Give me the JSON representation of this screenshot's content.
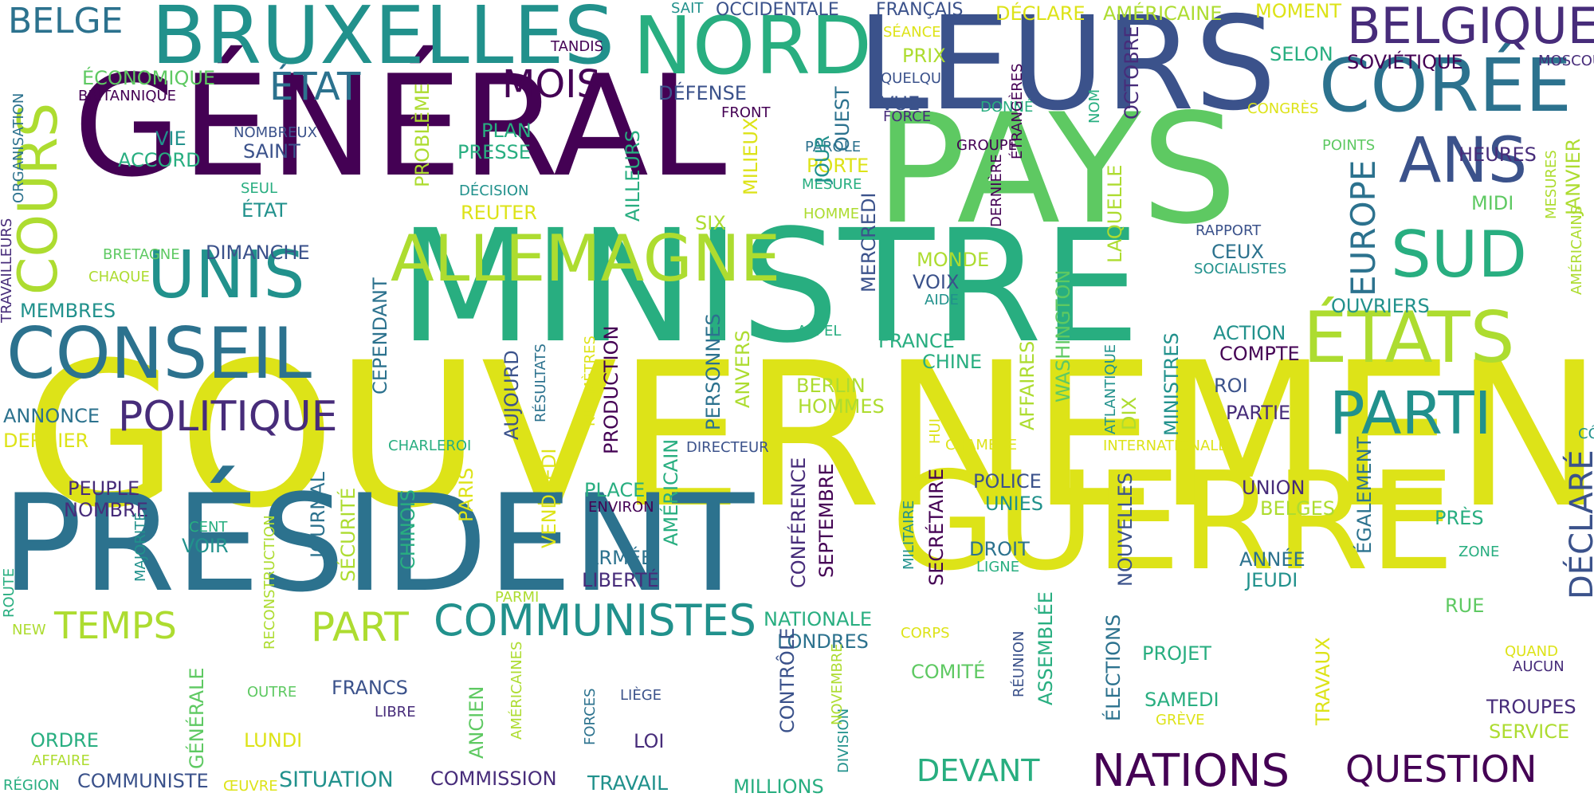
{
  "palette": {
    "c1": "#440154",
    "c2": "#472c7a",
    "c3": "#3b528b",
    "c4": "#2c728e",
    "c5": "#21918c",
    "c6": "#28ae80",
    "c7": "#5ec962",
    "c8": "#addc30",
    "c9": "#dde318"
  },
  "words": [
    {
      "t": "GOUVERNEMENT",
      "c": "c9",
      "v": 0
    },
    {
      "t": "MINISTRE",
      "c": "c6",
      "v": 0
    },
    {
      "t": "GÉNÉRAL",
      "c": "c1",
      "v": 0
    },
    {
      "t": "PAYS",
      "c": "c7",
      "v": 0
    },
    {
      "t": "LEURS",
      "c": "c3",
      "v": 0
    },
    {
      "t": "PRÉSIDENT",
      "c": "c4",
      "v": 0
    },
    {
      "t": "GUERRE",
      "c": "c9",
      "v": 0
    },
    {
      "t": "BRUXELLES",
      "c": "c5",
      "v": 0
    },
    {
      "t": "NORD",
      "c": "c6",
      "v": 0
    },
    {
      "t": "CORÉE",
      "c": "c4",
      "v": 0
    },
    {
      "t": "BELGIQUE",
      "c": "c2",
      "v": 0
    },
    {
      "t": "ANS",
      "c": "c3",
      "v": 0
    },
    {
      "t": "SUD",
      "c": "c6",
      "v": 0
    },
    {
      "t": "ÉTATS",
      "c": "c8",
      "v": 0
    },
    {
      "t": "PARTI",
      "c": "c5",
      "v": 0
    },
    {
      "t": "CONSEIL",
      "c": "c4",
      "v": 0
    },
    {
      "t": "UNIS",
      "c": "c5",
      "v": 0
    },
    {
      "t": "ALLEMAGNE",
      "c": "c8",
      "v": 0
    },
    {
      "t": "POLITIQUE",
      "c": "c2",
      "v": 0
    },
    {
      "t": "COURS",
      "c": "c8",
      "v": 1
    },
    {
      "t": "ÉTAT",
      "c": "c4",
      "v": 0
    },
    {
      "t": "MOIS",
      "c": "c1",
      "v": 0
    },
    {
      "t": "BELGE",
      "c": "c4",
      "v": 0
    },
    {
      "t": "COMMUNISTES",
      "c": "c5",
      "v": 0
    },
    {
      "t": "TEMPS",
      "c": "c8",
      "v": 0
    },
    {
      "t": "PART",
      "c": "c8",
      "v": 0
    },
    {
      "t": "NATIONS",
      "c": "c1",
      "v": 0
    },
    {
      "t": "QUESTION",
      "c": "c1",
      "v": 0
    },
    {
      "t": "DEVANT",
      "c": "c6",
      "v": 0
    },
    {
      "t": "EUROPE",
      "c": "c4",
      "v": 1
    },
    {
      "t": "DÉCLARÉ",
      "c": "c3",
      "v": 1
    },
    {
      "t": "SITUATION",
      "c": "c5",
      "v": 0
    },
    {
      "t": "COMMISSION",
      "c": "c2",
      "v": 0
    },
    {
      "t": "TRAVAIL",
      "c": "c5",
      "v": 0
    },
    {
      "t": "MILLIONS",
      "c": "c6",
      "v": 0
    },
    {
      "t": "ANNONCE",
      "c": "c4",
      "v": 0
    },
    {
      "t": "DERNIER",
      "c": "c9",
      "v": 0
    },
    {
      "t": "MEMBRES",
      "c": "c5",
      "v": 0
    },
    {
      "t": "ÉCONOMIQUE",
      "c": "c7",
      "v": 0
    },
    {
      "t": "BRITANNIQUE",
      "c": "c1",
      "v": 0
    },
    {
      "t": "OCCIDENTALE",
      "c": "c3",
      "v": 0
    },
    {
      "t": "FRANÇAIS",
      "c": "c3",
      "v": 0
    },
    {
      "t": "DÉCLARE",
      "c": "c9",
      "v": 0
    },
    {
      "t": "AMÉRICAINE",
      "c": "c8",
      "v": 0
    },
    {
      "t": "MOMENT",
      "c": "c9",
      "v": 0
    },
    {
      "t": "SAIT",
      "c": "c5",
      "v": 0
    },
    {
      "t": "TANDIS",
      "c": "c1",
      "v": 0
    },
    {
      "t": "SÉANCE",
      "c": "c9",
      "v": 0
    },
    {
      "t": "PRIX",
      "c": "c8",
      "v": 0
    },
    {
      "t": "QUELQUE",
      "c": "c3",
      "v": 0
    },
    {
      "t": "VUE",
      "c": "c3",
      "v": 0
    },
    {
      "t": "FORCE",
      "c": "c2",
      "v": 0
    },
    {
      "t": "DONNÉ",
      "c": "c6",
      "v": 0
    },
    {
      "t": "SELON",
      "c": "c6",
      "v": 0
    },
    {
      "t": "SOVIÉTIQUE",
      "c": "c1",
      "v": 0
    },
    {
      "t": "MOSCOU",
      "c": "c2",
      "v": 0
    },
    {
      "t": "CONGRÈS",
      "c": "c9",
      "v": 0
    },
    {
      "t": "HEURES",
      "c": "c2",
      "v": 0
    },
    {
      "t": "MIDI",
      "c": "c7",
      "v": 0
    },
    {
      "t": "RAPPORT",
      "c": "c3",
      "v": 0
    },
    {
      "t": "CEUX",
      "c": "c4",
      "v": 0
    },
    {
      "t": "SOCIALISTES",
      "c": "c5",
      "v": 0
    },
    {
      "t": "OUVRIERS",
      "c": "c5",
      "v": 0
    },
    {
      "t": "ACTION",
      "c": "c5",
      "v": 0
    },
    {
      "t": "COMPTE",
      "c": "c1",
      "v": 0
    },
    {
      "t": "ROI",
      "c": "c3",
      "v": 0
    },
    {
      "t": "PARTIE",
      "c": "c2",
      "v": 0
    },
    {
      "t": "CÔTÉ",
      "c": "c5",
      "v": 0
    },
    {
      "t": "INTERNATIONALE",
      "c": "c9",
      "v": 0
    },
    {
      "t": "POINTS",
      "c": "c7",
      "v": 0
    },
    {
      "t": "GROUPE",
      "c": "c1",
      "v": 0
    },
    {
      "t": "PAROLE",
      "c": "c4",
      "v": 0
    },
    {
      "t": "PORTE",
      "c": "c9",
      "v": 0
    },
    {
      "t": "MESURE",
      "c": "c6",
      "v": 0
    },
    {
      "t": "HOMME",
      "c": "c8",
      "v": 0
    },
    {
      "t": "FRONT",
      "c": "c1",
      "v": 0
    },
    {
      "t": "DÉFENSE",
      "c": "c3",
      "v": 0
    },
    {
      "t": "PLAN",
      "c": "c6",
      "v": 0
    },
    {
      "t": "PRESSE",
      "c": "c6",
      "v": 0
    },
    {
      "t": "DÉCISION",
      "c": "c5",
      "v": 0
    },
    {
      "t": "REUTER",
      "c": "c9",
      "v": 0
    },
    {
      "t": "SIX",
      "c": "c8",
      "v": 0
    },
    {
      "t": "NOMBREUX",
      "c": "c3",
      "v": 0
    },
    {
      "t": "SAINT",
      "c": "c3",
      "v": 0
    },
    {
      "t": "VIE",
      "c": "c5",
      "v": 0
    },
    {
      "t": "ACCORD",
      "c": "c6",
      "v": 0
    },
    {
      "t": "SEUL",
      "c": "c6",
      "v": 0
    },
    {
      "t": "ÉTAT",
      "c": "c5",
      "v": 0
    },
    {
      "t": "BRETAGNE",
      "c": "c7",
      "v": 0
    },
    {
      "t": "DIMANCHE",
      "c": "c3",
      "v": 0
    },
    {
      "t": "CHAQUE",
      "c": "c8",
      "v": 0
    },
    {
      "t": "MONDE",
      "c": "c8",
      "v": 0
    },
    {
      "t": "VOIX",
      "c": "c3",
      "v": 0
    },
    {
      "t": "AIDE",
      "c": "c5",
      "v": 0
    },
    {
      "t": "APPEL",
      "c": "c6",
      "v": 0
    },
    {
      "t": "FRANCE",
      "c": "c6",
      "v": 0
    },
    {
      "t": "CHINE",
      "c": "c6",
      "v": 0
    },
    {
      "t": "BERLIN",
      "c": "c8",
      "v": 0
    },
    {
      "t": "HOMMES",
      "c": "c8",
      "v": 0
    },
    {
      "t": "CHAMBRE",
      "c": "c9",
      "v": 0
    },
    {
      "t": "CHARLEROI",
      "c": "c6",
      "v": 0
    },
    {
      "t": "DIRECTEUR",
      "c": "c3",
      "v": 0
    },
    {
      "t": "PEUPLE",
      "c": "c2",
      "v": 0
    },
    {
      "t": "NOMBRE",
      "c": "c2",
      "v": 0
    },
    {
      "t": "CENT",
      "c": "c6",
      "v": 0
    },
    {
      "t": "VOIR",
      "c": "c5",
      "v": 0
    },
    {
      "t": "PLACE",
      "c": "c6",
      "v": 0
    },
    {
      "t": "ENVIRON",
      "c": "c1",
      "v": 0
    },
    {
      "t": "ARMÉE",
      "c": "c4",
      "v": 0
    },
    {
      "t": "LIBERTÉ",
      "c": "c2",
      "v": 0
    },
    {
      "t": "PARMI",
      "c": "c8",
      "v": 0
    },
    {
      "t": "POLICE",
      "c": "c3",
      "v": 0
    },
    {
      "t": "UNIES",
      "c": "c5",
      "v": 0
    },
    {
      "t": "DROIT",
      "c": "c4",
      "v": 0
    },
    {
      "t": "LIGNE",
      "c": "c6",
      "v": 0
    },
    {
      "t": "UNION",
      "c": "c2",
      "v": 0
    },
    {
      "t": "BELGES",
      "c": "c8",
      "v": 0
    },
    {
      "t": "PRÈS",
      "c": "c6",
      "v": 0
    },
    {
      "t": "ZONE",
      "c": "c6",
      "v": 0
    },
    {
      "t": "ANNÉE",
      "c": "c4",
      "v": 0
    },
    {
      "t": "JEUDI",
      "c": "c5",
      "v": 0
    },
    {
      "t": "RUE",
      "c": "c7",
      "v": 0
    },
    {
      "t": "NATIONALE",
      "c": "c6",
      "v": 0
    },
    {
      "t": "LONDRES",
      "c": "c4",
      "v": 0
    },
    {
      "t": "CORPS",
      "c": "c9",
      "v": 0
    },
    {
      "t": "COMITÉ",
      "c": "c7",
      "v": 0
    },
    {
      "t": "PROJET",
      "c": "c6",
      "v": 0
    },
    {
      "t": "SAMEDI",
      "c": "c6",
      "v": 0
    },
    {
      "t": "GRÈVE",
      "c": "c9",
      "v": 0
    },
    {
      "t": "QUAND",
      "c": "c9",
      "v": 0
    },
    {
      "t": "AUCUN",
      "c": "c2",
      "v": 0
    },
    {
      "t": "TROUPES",
      "c": "c2",
      "v": 0
    },
    {
      "t": "SERVICE",
      "c": "c8",
      "v": 0
    },
    {
      "t": "FRANCS",
      "c": "c3",
      "v": 0
    },
    {
      "t": "OUTRE",
      "c": "c7",
      "v": 0
    },
    {
      "t": "LIBRE",
      "c": "c2",
      "v": 0
    },
    {
      "t": "LIÈGE",
      "c": "c3",
      "v": 0
    },
    {
      "t": "LOI",
      "c": "c2",
      "v": 0
    },
    {
      "t": "LUNDI",
      "c": "c9",
      "v": 0
    },
    {
      "t": "ORDRE",
      "c": "c6",
      "v": 0
    },
    {
      "t": "AFFAIRE",
      "c": "c8",
      "v": 0
    },
    {
      "t": "RÉGION",
      "c": "c6",
      "v": 0
    },
    {
      "t": "COMMUNISTE",
      "c": "c3",
      "v": 0
    },
    {
      "t": "ŒUVRE",
      "c": "c9",
      "v": 0
    },
    {
      "t": "NEW",
      "c": "c8",
      "v": 0
    },
    {
      "t": "TRAVAILLEURS",
      "c": "c2",
      "v": 1
    },
    {
      "t": "ORGANISATION",
      "c": "c4",
      "v": 1
    },
    {
      "t": "PROBLÈME",
      "c": "c8",
      "v": 1
    },
    {
      "t": "AILLEURS",
      "c": "c6",
      "v": 1
    },
    {
      "t": "MILIEUX",
      "c": "c9",
      "v": 1
    },
    {
      "t": "JOUR",
      "c": "c5",
      "v": 1
    },
    {
      "t": "OUEST",
      "c": "c4",
      "v": 1
    },
    {
      "t": "MERCREDI",
      "c": "c3",
      "v": 1
    },
    {
      "t": "DERNIÈRE",
      "c": "c1",
      "v": 1
    },
    {
      "t": "ÉTRANGÈRES",
      "c": "c1",
      "v": 1
    },
    {
      "t": "NOM",
      "c": "c6",
      "v": 1
    },
    {
      "t": "OCTOBRE",
      "c": "c2",
      "v": 1
    },
    {
      "t": "LAQUELLE",
      "c": "c8",
      "v": 1
    },
    {
      "t": "MESURES",
      "c": "c8",
      "v": 1
    },
    {
      "t": "JANVIER",
      "c": "c8",
      "v": 1
    },
    {
      "t": "AMÉRICAINS",
      "c": "c8",
      "v": 1
    },
    {
      "t": "CEPENDANT",
      "c": "c4",
      "v": 1
    },
    {
      "t": "AUJOURD",
      "c": "c3",
      "v": 1
    },
    {
      "t": "RÉSULTATS",
      "c": "c4",
      "v": 1
    },
    {
      "t": "KILOMÈTRES",
      "c": "c9",
      "v": 1
    },
    {
      "t": "PRODUCTION",
      "c": "c1",
      "v": 1
    },
    {
      "t": "PERSONNES",
      "c": "c4",
      "v": 1
    },
    {
      "t": "ANVERS",
      "c": "c8",
      "v": 1
    },
    {
      "t": "HUI",
      "c": "c9",
      "v": 1
    },
    {
      "t": "AFFAIRES",
      "c": "c8",
      "v": 1
    },
    {
      "t": "WASHINGTON",
      "c": "c7",
      "v": 1
    },
    {
      "t": "ATLANTIQUE",
      "c": "c5",
      "v": 1
    },
    {
      "t": "DIX",
      "c": "c8",
      "v": 1
    },
    {
      "t": "MINISTRES",
      "c": "c5",
      "v": 1
    },
    {
      "t": "RECONSTRUCTION",
      "c": "c8",
      "v": 1
    },
    {
      "t": "SÉCURITÉ",
      "c": "c8",
      "v": 1
    },
    {
      "t": "JOURNAL",
      "c": "c4",
      "v": 1
    },
    {
      "t": "CHINOIS",
      "c": "c6",
      "v": 1
    },
    {
      "t": "PARIS",
      "c": "c9",
      "v": 1
    },
    {
      "t": "VENDREDI",
      "c": "c9",
      "v": 1
    },
    {
      "t": "AMÉRICAIN",
      "c": "c6",
      "v": 1
    },
    {
      "t": "CONFÉRENCE",
      "c": "c2",
      "v": 1
    },
    {
      "t": "SEPTEMBRE",
      "c": "c1",
      "v": 1
    },
    {
      "t": "MILITAIRE",
      "c": "c5",
      "v": 1
    },
    {
      "t": "SECRÉTAIRE",
      "c": "c1",
      "v": 1
    },
    {
      "t": "ASSEMBLÉE",
      "c": "c6",
      "v": 1
    },
    {
      "t": "NOUVELLES",
      "c": "c3",
      "v": 1
    },
    {
      "t": "ÉGALEMENT",
      "c": "c4",
      "v": 1
    },
    {
      "t": "ROUTE",
      "c": "c6",
      "v": 1
    },
    {
      "t": "MAJORITÉ",
      "c": "c5",
      "v": 1
    },
    {
      "t": "GÉNÉRALE",
      "c": "c7",
      "v": 1
    },
    {
      "t": "ANCIEN",
      "c": "c7",
      "v": 1
    },
    {
      "t": "AMÉRICAINES",
      "c": "c8",
      "v": 1
    },
    {
      "t": "FORCES",
      "c": "c4",
      "v": 1
    },
    {
      "t": "CONTRÔLE",
      "c": "c3",
      "v": 1
    },
    {
      "t": "DIVISION",
      "c": "c5",
      "v": 1
    },
    {
      "t": "NOVEMBRE",
      "c": "c8",
      "v": 1
    },
    {
      "t": "RÉUNION",
      "c": "c3",
      "v": 1
    },
    {
      "t": "ÉLECTIONS",
      "c": "c4",
      "v": 1
    },
    {
      "t": "TRAVAUX",
      "c": "c9",
      "v": 1
    }
  ]
}
